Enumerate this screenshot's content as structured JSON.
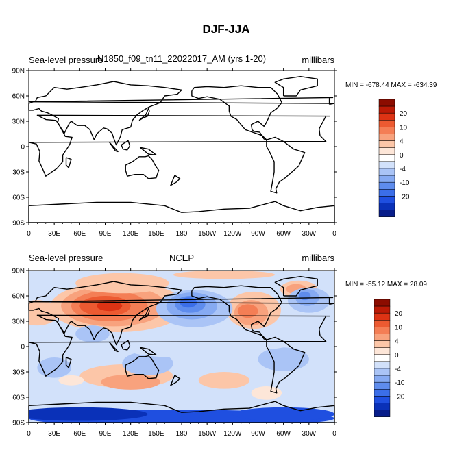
{
  "colors": {
    "levels": [
      "#081d8a",
      "#0a31b8",
      "#1f4fe0",
      "#3b6ee8",
      "#5e8ced",
      "#86aaf2",
      "#aac4f6",
      "#d2e1fa",
      "#ffffff",
      "#fde6d8",
      "#fcc6a8",
      "#f8a27d",
      "#f47e55",
      "#ec5a31",
      "#dd3314",
      "#bc1a06",
      "#8c0c00"
    ],
    "land": "#000000"
  },
  "chart_data": {
    "type": "contour-map",
    "title": "DJF-JJA",
    "colorbar_ticks": [
      "20",
      "10",
      "4",
      "0",
      "-4",
      "-10",
      "-20"
    ],
    "colorbar_levels": [
      -25,
      -20,
      -15,
      -10,
      -7,
      -4,
      -2,
      0,
      2,
      4,
      7,
      10,
      15,
      20,
      25
    ],
    "xticks": [
      "0",
      "30E",
      "60E",
      "90E",
      "120E",
      "150E",
      "180",
      "150W",
      "120W",
      "90W",
      "60W",
      "30W",
      "0"
    ],
    "yticks": [
      "90N",
      "60N",
      "30N",
      "0",
      "30S",
      "60S",
      "90S"
    ],
    "panels": [
      {
        "left_label": "Sea-level pressure",
        "center_label": "N1850_f09_tn11_22022017_AM (yrs 1-20)",
        "right_label": "millibars",
        "min_max": "MIN = -678.44  MAX = -634.39",
        "min": -678.44,
        "max": -634.39,
        "field": "empty (all values below colorbar range)"
      },
      {
        "left_label": "Sea-level pressure",
        "center_label": "NCEP",
        "right_label": "millibars",
        "min_max": "MIN = -55.12  MAX =  28.09",
        "min": -55.12,
        "max": 28.09,
        "field": "seasonal difference DJF minus JJA"
      }
    ]
  }
}
